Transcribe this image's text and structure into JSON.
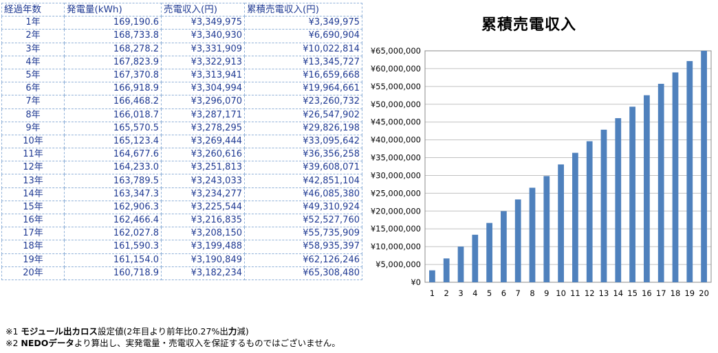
{
  "table": {
    "headers": [
      "経過年数",
      "発電量(kWh)",
      "売電収入(円)",
      "累積売電収入(円)"
    ],
    "rows": [
      [
        "1年",
        "169,190.6",
        "¥3,349,975",
        "¥3,349,975"
      ],
      [
        "2年",
        "168,733.8",
        "¥3,340,930",
        "¥6,690,904"
      ],
      [
        "3年",
        "168,278.2",
        "¥3,331,909",
        "¥10,022,814"
      ],
      [
        "4年",
        "167,823.9",
        "¥3,322,913",
        "¥13,345,727"
      ],
      [
        "5年",
        "167,370.8",
        "¥3,313,941",
        "¥16,659,668"
      ],
      [
        "6年",
        "166,918.9",
        "¥3,304,994",
        "¥19,964,661"
      ],
      [
        "7年",
        "166,468.2",
        "¥3,296,070",
        "¥23,260,732"
      ],
      [
        "8年",
        "166,018.7",
        "¥3,287,171",
        "¥26,547,902"
      ],
      [
        "9年",
        "165,570.5",
        "¥3,278,295",
        "¥29,826,198"
      ],
      [
        "10年",
        "165,123.4",
        "¥3,269,444",
        "¥33,095,642"
      ],
      [
        "11年",
        "164,677.6",
        "¥3,260,616",
        "¥36,356,258"
      ],
      [
        "12年",
        "164,233.0",
        "¥3,251,813",
        "¥39,608,071"
      ],
      [
        "13年",
        "163,789.5",
        "¥3,243,033",
        "¥42,851,104"
      ],
      [
        "14年",
        "163,347.3",
        "¥3,234,277",
        "¥46,085,380"
      ],
      [
        "15年",
        "162,906.3",
        "¥3,225,544",
        "¥49,310,924"
      ],
      [
        "16年",
        "162,466.4",
        "¥3,216,835",
        "¥52,527,760"
      ],
      [
        "17年",
        "162,027.8",
        "¥3,208,150",
        "¥55,735,909"
      ],
      [
        "18年",
        "161,590.3",
        "¥3,199,488",
        "¥58,935,397"
      ],
      [
        "19年",
        "161,154.0",
        "¥3,190,849",
        "¥62,126,246"
      ],
      [
        "20年",
        "160,718.9",
        "¥3,182,234",
        "¥65,308,480"
      ]
    ]
  },
  "chart_data": {
    "type": "bar",
    "title": "累積売電収入",
    "xlabel": "",
    "ylabel": "",
    "categories": [
      "1",
      "2",
      "3",
      "4",
      "5",
      "6",
      "7",
      "8",
      "9",
      "10",
      "11",
      "12",
      "13",
      "14",
      "15",
      "16",
      "17",
      "18",
      "19",
      "20"
    ],
    "values": [
      3349975,
      6690904,
      10022814,
      13345727,
      16659668,
      19964661,
      23260732,
      26547902,
      29826198,
      33095642,
      36356258,
      39608071,
      42851104,
      46085380,
      49310924,
      52527760,
      55735909,
      58935397,
      62126246,
      65308480
    ],
    "ylim": [
      0,
      65000000
    ],
    "yticks": [
      "¥0",
      "¥5,000,000",
      "¥10,000,000",
      "¥15,000,000",
      "¥20,000,000",
      "¥25,000,000",
      "¥30,000,000",
      "¥35,000,000",
      "¥40,000,000",
      "¥45,000,000",
      "¥50,000,000",
      "¥55,000,000",
      "¥60,000,000",
      "¥65,000,000"
    ],
    "grid": true,
    "bar_color": "#4f81bd"
  },
  "notes": {
    "note1_prefix": "※1 ",
    "note1_bold": "モジュール出カロス",
    "note1_text": "設定値(2年目より前年比0.27%出",
    "note1_bold2": "力",
    "note1_text2": "減)",
    "note2_prefix": "※2 ",
    "note2_bold": "NEDOデータ",
    "note2_text": "より算出し、実発電量・売電収入を保証するものではございません。"
  }
}
